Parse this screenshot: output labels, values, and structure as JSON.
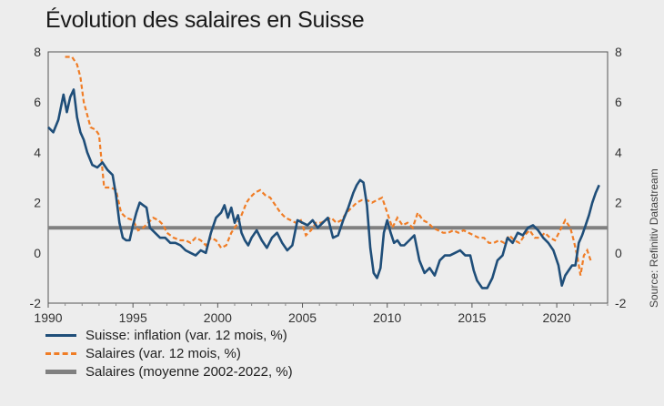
{
  "title": "Évolution des salaires en Suisse",
  "source": "Source: Refinitiv Datastream",
  "chart_data": {
    "type": "line",
    "title": "Évolution des salaires en Suisse",
    "xlim": [
      1990,
      2023
    ],
    "ylim": [
      -2,
      8
    ],
    "x_ticks": [
      "1990",
      "1995",
      "2000",
      "2005",
      "2010",
      "2015",
      "2020"
    ],
    "y_ticks_left": [
      "-2",
      "0",
      "2",
      "4",
      "6",
      "8"
    ],
    "y_ticks_right": [
      "-2",
      "0",
      "2",
      "4",
      "6",
      "8"
    ],
    "grid": false,
    "legend_position": "bottom-left",
    "series": [
      {
        "name": "Suisse: inflation (var. 12 mois, %)",
        "style": "solid",
        "color": "#1f4e79",
        "x": [
          1990.0,
          1990.3,
          1990.6,
          1990.9,
          1991.1,
          1991.3,
          1991.5,
          1991.7,
          1991.9,
          1992.1,
          1992.3,
          1992.6,
          1992.9,
          1993.2,
          1993.5,
          1993.8,
          1994.0,
          1994.2,
          1994.4,
          1994.6,
          1994.8,
          1995.0,
          1995.2,
          1995.4,
          1995.6,
          1995.8,
          1996.0,
          1996.3,
          1996.6,
          1996.9,
          1997.2,
          1997.5,
          1997.8,
          1998.1,
          1998.4,
          1998.7,
          1999.0,
          1999.3,
          1999.6,
          1999.9,
          2000.2,
          2000.4,
          2000.6,
          2000.8,
          2001.0,
          2001.2,
          2001.4,
          2001.6,
          2001.8,
          2002.0,
          2002.3,
          2002.6,
          2002.9,
          2003.2,
          2003.5,
          2003.8,
          2004.1,
          2004.4,
          2004.7,
          2005.0,
          2005.3,
          2005.6,
          2005.9,
          2006.2,
          2006.5,
          2006.8,
          2007.1,
          2007.4,
          2007.7,
          2008.0,
          2008.2,
          2008.4,
          2008.6,
          2008.8,
          2009.0,
          2009.2,
          2009.4,
          2009.6,
          2009.8,
          2010.0,
          2010.2,
          2010.4,
          2010.6,
          2010.8,
          2011.0,
          2011.3,
          2011.6,
          2011.9,
          2012.2,
          2012.5,
          2012.8,
          2013.1,
          2013.4,
          2013.7,
          2014.0,
          2014.3,
          2014.6,
          2014.9,
          2015.1,
          2015.3,
          2015.6,
          2015.9,
          2016.2,
          2016.5,
          2016.8,
          2017.1,
          2017.4,
          2017.7,
          2018.0,
          2018.3,
          2018.6,
          2018.9,
          2019.2,
          2019.5,
          2019.8,
          2020.1,
          2020.3,
          2020.5,
          2020.7,
          2020.9,
          2021.1,
          2021.3,
          2021.5,
          2021.7,
          2021.9,
          2022.1,
          2022.3,
          2022.5
        ],
        "y": [
          5.0,
          4.8,
          5.3,
          6.3,
          5.6,
          6.2,
          6.5,
          5.4,
          4.8,
          4.5,
          4.0,
          3.5,
          3.4,
          3.6,
          3.3,
          3.1,
          2.3,
          1.2,
          0.6,
          0.5,
          0.5,
          1.1,
          1.6,
          2.0,
          1.9,
          1.8,
          1.0,
          0.8,
          0.6,
          0.6,
          0.4,
          0.4,
          0.3,
          0.1,
          0.0,
          -0.1,
          0.1,
          0.0,
          0.8,
          1.4,
          1.6,
          1.9,
          1.4,
          1.8,
          1.2,
          1.5,
          0.8,
          0.5,
          0.3,
          0.6,
          0.9,
          0.5,
          0.2,
          0.6,
          0.8,
          0.4,
          0.1,
          0.3,
          1.3,
          1.2,
          1.1,
          1.3,
          1.0,
          1.2,
          1.4,
          0.6,
          0.7,
          1.3,
          1.8,
          2.4,
          2.7,
          2.9,
          2.8,
          1.9,
          0.2,
          -0.8,
          -1.0,
          -0.6,
          0.8,
          1.3,
          0.8,
          0.4,
          0.5,
          0.3,
          0.3,
          0.5,
          0.7,
          -0.3,
          -0.8,
          -0.6,
          -0.9,
          -0.3,
          -0.1,
          -0.1,
          0.0,
          0.1,
          -0.1,
          -0.1,
          -0.7,
          -1.1,
          -1.4,
          -1.4,
          -1.0,
          -0.3,
          -0.1,
          0.6,
          0.4,
          0.8,
          0.7,
          1.0,
          1.1,
          0.9,
          0.6,
          0.4,
          0.1,
          -0.5,
          -1.3,
          -0.9,
          -0.7,
          -0.5,
          -0.5,
          0.4,
          0.7,
          1.1,
          1.5,
          2.0,
          2.4,
          2.7
        ]
      },
      {
        "name": "Salaires (var. 12 mois, %)",
        "style": "dashed",
        "color": "#f07d26",
        "x": [
          1991.0,
          1991.4,
          1991.7,
          1991.9,
          1992.1,
          1992.5,
          1992.8,
          1993.0,
          1993.3,
          1993.7,
          1994.0,
          1994.3,
          1994.6,
          1995.0,
          1995.3,
          1995.6,
          1995.9,
          1996.2,
          1996.5,
          1996.8,
          1997.0,
          1997.4,
          1997.8,
          1998.1,
          1998.4,
          1998.7,
          1999.0,
          1999.3,
          1999.6,
          1999.9,
          2000.2,
          2000.5,
          2000.8,
          2001.1,
          2001.4,
          2001.7,
          2001.9,
          2002.2,
          2002.5,
          2002.8,
          2003.1,
          2003.4,
          2003.7,
          2004.0,
          2004.3,
          2004.6,
          2004.9,
          2005.2,
          2005.5,
          2005.8,
          2006.1,
          2006.4,
          2006.7,
          2007.0,
          2007.3,
          2007.6,
          2007.9,
          2008.2,
          2008.5,
          2008.8,
          2009.1,
          2009.4,
          2009.7,
          2010.0,
          2010.3,
          2010.6,
          2010.9,
          2011.2,
          2011.5,
          2011.8,
          2012.1,
          2012.4,
          2012.7,
          2013.0,
          2013.3,
          2013.6,
          2013.9,
          2014.2,
          2014.5,
          2014.8,
          2015.1,
          2015.4,
          2015.7,
          2016.0,
          2016.3,
          2016.6,
          2016.9,
          2017.2,
          2017.5,
          2017.8,
          2018.1,
          2018.4,
          2018.7,
          2019.0,
          2019.3,
          2019.6,
          2019.9,
          2020.2,
          2020.5,
          2020.8,
          2021.0,
          2021.2,
          2021.4,
          2021.6,
          2021.8,
          2022.0
        ],
        "y": [
          7.8,
          7.8,
          7.5,
          7.0,
          6.0,
          5.0,
          4.9,
          4.7,
          2.6,
          2.6,
          2.5,
          1.6,
          1.4,
          1.3,
          0.9,
          1.0,
          1.2,
          1.4,
          1.3,
          1.1,
          0.8,
          0.6,
          0.5,
          0.5,
          0.4,
          0.6,
          0.5,
          0.3,
          0.6,
          0.5,
          0.2,
          0.3,
          0.8,
          1.1,
          1.5,
          2.0,
          2.2,
          2.4,
          2.5,
          2.3,
          2.2,
          1.9,
          1.6,
          1.4,
          1.3,
          1.2,
          1.3,
          0.7,
          0.9,
          1.2,
          1.2,
          1.3,
          1.4,
          1.2,
          1.3,
          1.6,
          1.8,
          2.0,
          2.1,
          2.1,
          2.0,
          2.1,
          2.2,
          1.6,
          1.0,
          1.4,
          1.1,
          1.2,
          1.0,
          1.6,
          1.3,
          1.2,
          1.0,
          0.9,
          0.8,
          0.8,
          0.9,
          0.8,
          0.9,
          0.8,
          0.7,
          0.6,
          0.6,
          0.4,
          0.4,
          0.5,
          0.4,
          0.7,
          0.5,
          0.4,
          0.7,
          0.9,
          0.6,
          0.6,
          0.8,
          0.6,
          0.5,
          0.9,
          1.3,
          1.0,
          0.5,
          -0.1,
          -0.9,
          -0.1,
          0.1,
          -0.3
        ]
      },
      {
        "name": "Salaires (moyenne 2002-2022, %)",
        "style": "solid-thick",
        "color": "#808080",
        "x": [
          1990,
          2023
        ],
        "y": [
          1.0,
          1.0
        ]
      }
    ]
  },
  "legend": {
    "items": [
      {
        "label": "Suisse: inflation (var. 12 mois, %)",
        "color": "#1f4e79",
        "style": "solid"
      },
      {
        "label": "Salaires (var. 12 mois, %)",
        "color": "#f07d26",
        "style": "dashed"
      },
      {
        "label": "Salaires (moyenne 2002-2022, %)",
        "color": "#808080",
        "style": "thick"
      }
    ]
  }
}
